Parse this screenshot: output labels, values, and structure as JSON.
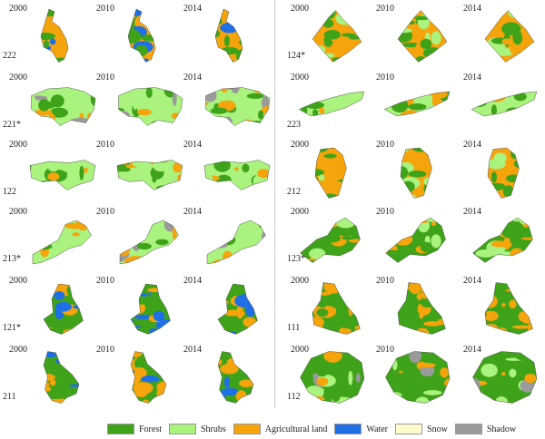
{
  "years": [
    "2000",
    "2010",
    "2014"
  ],
  "left_regions": [
    "222",
    "221*",
    "122",
    "213*",
    "121*",
    "211"
  ],
  "right_regions": [
    "124*",
    "223",
    "212",
    "123*",
    "111",
    "112"
  ],
  "legend": [
    {
      "label": "Forest",
      "color": "#3fa31a"
    },
    {
      "label": "Shrubs",
      "color": "#aaf37e"
    },
    {
      "label": "Agricultural land",
      "color": "#f5a40b"
    },
    {
      "label": "Water",
      "color": "#1f6fe5"
    },
    {
      "label": "Snow",
      "color": "#fffccc"
    },
    {
      "label": "Shadow",
      "color": "#9a9a9a"
    }
  ],
  "colors": {
    "forest": "#3fa31a",
    "shrubs": "#aaf37e",
    "agri": "#f5a40b",
    "water": "#1f6fe5",
    "snow": "#fffccc",
    "shadow": "#9a9a9a"
  }
}
